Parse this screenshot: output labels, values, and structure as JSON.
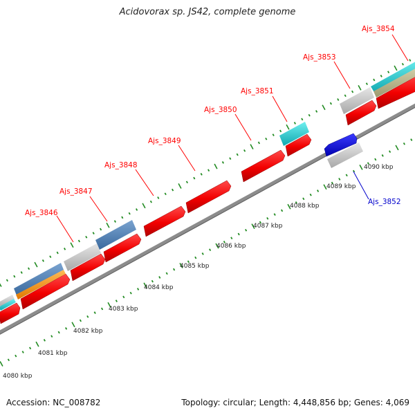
{
  "title": "Acidovorax sp. JS42, complete genome",
  "footer": {
    "accession": "Accession: NC_008782",
    "topology": "Topology: circular; Length: 4,448,856 bp; Genes: 4,069"
  },
  "colors": {
    "forward_gene": "#ff0000",
    "reverse_gene": "#0000e0",
    "backbone": "#8c8c8c",
    "tick": "#228b22",
    "steelblue_feature": "#4f7fb4",
    "grey_feature": "#c4c4c4",
    "cyan_feature": "#20d0d0",
    "orange_feature": "#ff9a1a",
    "khaki_feature": "#b8b48a"
  },
  "kbp_ticks": [
    "4080 kbp",
    "4081 kbp",
    "4082 kbp",
    "4083 kbp",
    "4084 kbp",
    "4085 kbp",
    "4086 kbp",
    "4087 kbp",
    "4088 kbp",
    "4089 kbp",
    "4090 kbp"
  ],
  "gene_labels": [
    {
      "text": "Ajs_3846",
      "strand": "forward"
    },
    {
      "text": "Ajs_3847",
      "strand": "forward"
    },
    {
      "text": "Ajs_3848",
      "strand": "forward"
    },
    {
      "text": "Ajs_3849",
      "strand": "forward"
    },
    {
      "text": "Ajs_3850",
      "strand": "forward"
    },
    {
      "text": "Ajs_3851",
      "strand": "forward"
    },
    {
      "text": "Ajs_3852",
      "strand": "reverse"
    },
    {
      "text": "Ajs_3853",
      "strand": "forward"
    },
    {
      "text": "Ajs_3854",
      "strand": "forward"
    }
  ]
}
